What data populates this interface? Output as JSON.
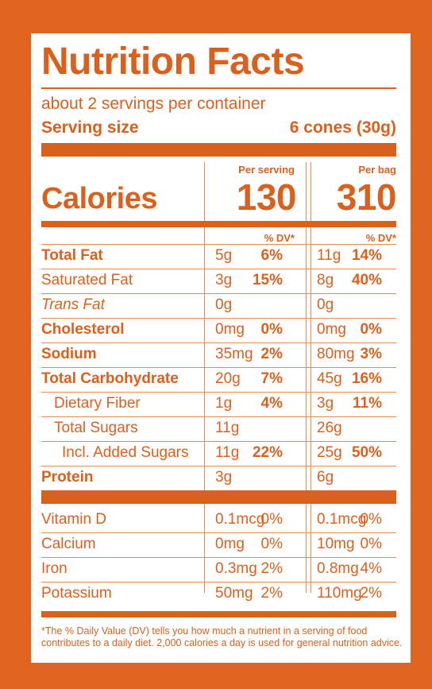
{
  "title": "Nutrition Facts",
  "servings_per_container": "about 2 servings per container",
  "serving_size": {
    "label": "Serving size",
    "value": "6 cones (30g)"
  },
  "columns": {
    "per_serving": "Per serving",
    "per_bag": "Per bag",
    "dv": "% DV*"
  },
  "calories": {
    "label": "Calories",
    "per_serving": "130",
    "per_bag": "310"
  },
  "nutrients": [
    {
      "name": "Total Fat",
      "style": "bold",
      "indent": 0,
      "s_amt": "5g",
      "s_dv": "6%",
      "b_amt": "11g",
      "b_dv": "14%"
    },
    {
      "name": "Saturated Fat",
      "style": "normal",
      "indent": 0,
      "s_amt": "3g",
      "s_dv": "15%",
      "b_amt": "8g",
      "b_dv": "40%"
    },
    {
      "name": "Trans Fat",
      "style": "italic",
      "indent": 0,
      "s_amt": "0g",
      "s_dv": "",
      "b_amt": "0g",
      "b_dv": ""
    },
    {
      "name": "Cholesterol",
      "style": "bold",
      "indent": 0,
      "s_amt": "0mg",
      "s_dv": "0%",
      "b_amt": "0mg",
      "b_dv": "0%"
    },
    {
      "name": "Sodium",
      "style": "bold",
      "indent": 0,
      "s_amt": "35mg",
      "s_dv": "2%",
      "b_amt": "80mg",
      "b_dv": "3%"
    },
    {
      "name": "Total Carbohydrate",
      "style": "bold",
      "indent": 0,
      "s_amt": "20g",
      "s_dv": "7%",
      "b_amt": "45g",
      "b_dv": "16%"
    },
    {
      "name": "Dietary Fiber",
      "style": "normal",
      "indent": 1,
      "s_amt": "1g",
      "s_dv": "4%",
      "b_amt": "3g",
      "b_dv": "11%"
    },
    {
      "name": "Total Sugars",
      "style": "normal",
      "indent": 1,
      "s_amt": "11g",
      "s_dv": "",
      "b_amt": "26g",
      "b_dv": ""
    },
    {
      "name": "Incl. Added Sugars",
      "style": "normal",
      "indent": 2,
      "s_amt": "11g",
      "s_dv": "22%",
      "b_amt": "25g",
      "b_dv": "50%"
    },
    {
      "name": "Protein",
      "style": "bold",
      "indent": 0,
      "s_amt": "3g",
      "s_dv": "",
      "b_amt": "6g",
      "b_dv": ""
    }
  ],
  "vitamins": [
    {
      "name": "Vitamin D",
      "s_amt": "0.1mcg",
      "s_dv": "0%",
      "b_amt": "0.1mcg",
      "b_dv": "0%"
    },
    {
      "name": "Calcium",
      "s_amt": "0mg",
      "s_dv": "0%",
      "b_amt": "10mg",
      "b_dv": "0%"
    },
    {
      "name": "Iron",
      "s_amt": "0.3mg",
      "s_dv": "2%",
      "b_amt": "0.8mg",
      "b_dv": "4%"
    },
    {
      "name": "Potassium",
      "s_amt": "50mg",
      "s_dv": "2%",
      "b_amt": "110mg",
      "b_dv": "2%"
    }
  ],
  "footnote": "*The % Daily Value (DV) tells you how much a nutrient in a serving of food contributes to a daily diet. 2,000 calories a day is used for general nutrition advice.",
  "colors": {
    "background": "#e0641e",
    "panel": "#ffffff",
    "ink": "#d9611d"
  }
}
